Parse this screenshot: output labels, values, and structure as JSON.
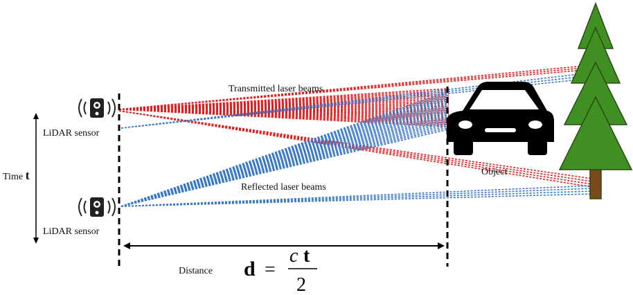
{
  "labels": {
    "transmitted": "Transmitted laser beams",
    "reflected": "Reflected laser beams",
    "object": "Object",
    "sensors": [
      "LiDAR sensor",
      "LiDAR sensor"
    ],
    "time": "Time",
    "time_symbol": "t",
    "distance": "Distance"
  },
  "formula": {
    "lhs": "d",
    "equals": "=",
    "c": "c",
    "t": "t",
    "denominator": "2"
  }
}
